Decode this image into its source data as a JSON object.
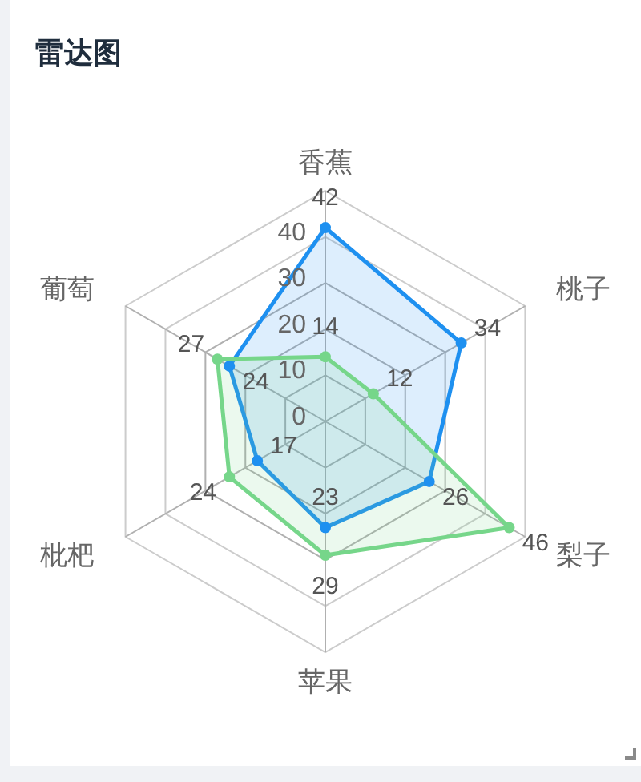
{
  "chart_data": {
    "type": "radar",
    "title": "雷达图",
    "categories": [
      "香蕉",
      "桃子",
      "梨子",
      "苹果",
      "枇杷",
      "葡萄"
    ],
    "series": [
      {
        "color": "#1e90f0",
        "values": [
          42,
          34,
          26,
          23,
          17,
          24
        ]
      },
      {
        "color": "#76d68a",
        "values": [
          14,
          12,
          46,
          29,
          24,
          27
        ]
      }
    ],
    "ylim": [
      0,
      50
    ],
    "yticks": [
      0,
      10,
      20,
      30,
      40
    ],
    "grid": true,
    "marker": "circle",
    "line_style": "solid",
    "data_labels": true
  }
}
